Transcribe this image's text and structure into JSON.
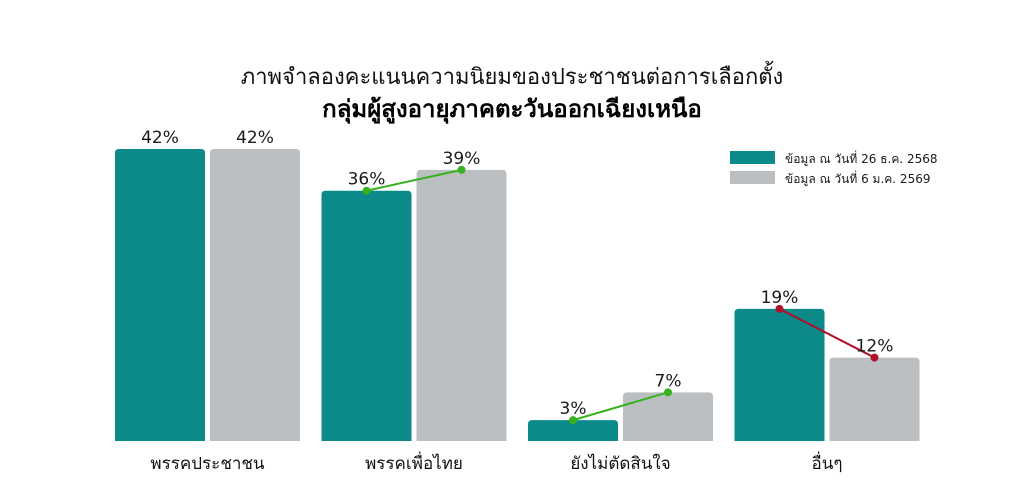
{
  "chart_data": {
    "type": "bar",
    "title": "ภาพจำลองคะแนนความนิยมของประชาชนต่อการเลือกตั้ง",
    "subtitle": "กลุ่มผู้สูงอายุภาคตะวันออกเฉียงเหนือ",
    "categories": [
      "พรรคประชาชน",
      "พรรคเพื่อไทย",
      "ยังไม่ตัดสินใจ",
      "อื่นๆ"
    ],
    "series": [
      {
        "name": "ข้อมูล ณ วันที่ 26 ธ.ค. 2568",
        "color": "#0c8a89",
        "values": [
          42,
          36,
          3,
          19
        ]
      },
      {
        "name": "ข้อมูล ณ วันที่ 6 ม.ค. 2569",
        "color": "#bcbfc2",
        "values": [
          42,
          39,
          7,
          12
        ]
      }
    ],
    "value_labels": [
      [
        "42%",
        "36%",
        "3%",
        "19%"
      ],
      [
        "42%",
        "39%",
        "7%",
        "12%"
      ]
    ],
    "trend_colors": {
      "up": "#35b21c",
      "down": "#b0102a"
    },
    "ylim": [
      0,
      42
    ],
    "grid": false,
    "legend_position": "top-right",
    "xlabel": "",
    "ylabel": ""
  }
}
